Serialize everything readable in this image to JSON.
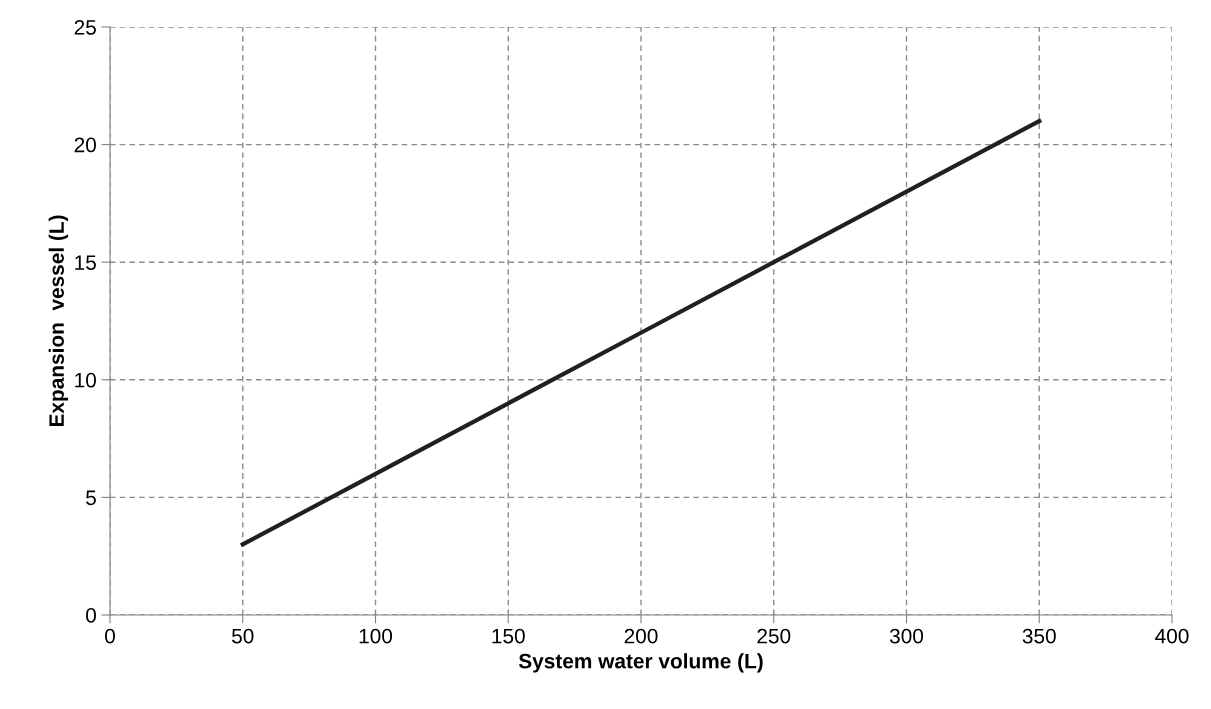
{
  "chart_data": {
    "type": "line",
    "xlabel": "System water volume (L)",
    "ylabel": "Expansion  vessel (L)",
    "x": [
      50,
      100,
      150,
      200,
      250,
      300,
      350
    ],
    "series": [
      {
        "color": "#231f20",
        "values": [
          3,
          6,
          9,
          12,
          15,
          18,
          21
        ]
      }
    ],
    "xlim": [
      0,
      400
    ],
    "xticks": [
      0,
      50,
      100,
      150,
      200,
      250,
      300,
      350,
      400
    ],
    "ylim": [
      0,
      25
    ],
    "yticks": [
      0,
      5,
      10,
      15,
      20,
      25
    ],
    "grid": true,
    "legend": false,
    "marker": "none",
    "line_style": "solid"
  }
}
